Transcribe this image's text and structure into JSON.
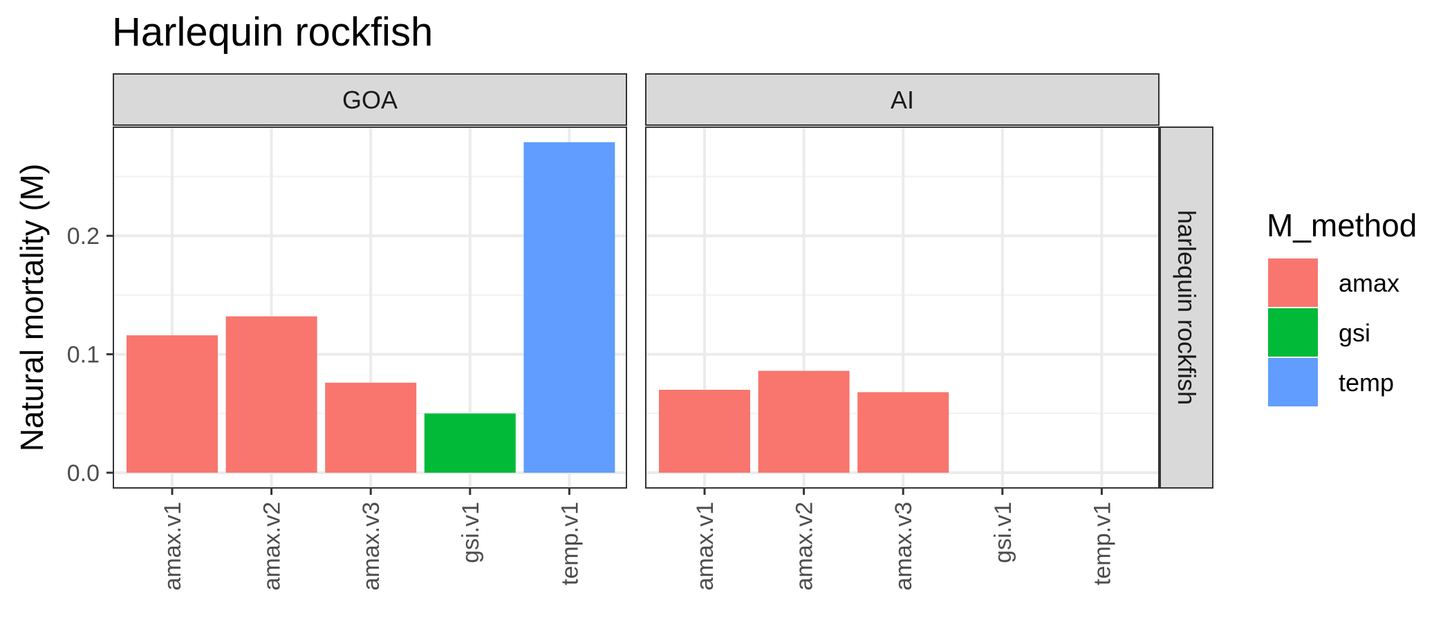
{
  "chart_data": {
    "type": "bar",
    "title": "Harlequin rockfish",
    "ylabel": "Natural mortality (M)",
    "xlabel": "",
    "ylim": [
      0,
      0.3
    ],
    "y_ticks": [
      "0.0",
      "0.1",
      "0.2"
    ],
    "categories": [
      "amax.v1",
      "amax.v2",
      "amax.v3",
      "gsi.v1",
      "temp.v1"
    ],
    "facet_row_label": "harlequin rockfish",
    "grid": true,
    "legend": {
      "title": "M_method",
      "position": "right",
      "entries": [
        {
          "name": "amax",
          "color": "#F8766D"
        },
        {
          "name": "gsi",
          "color": "#00BA38"
        },
        {
          "name": "temp",
          "color": "#619CFF"
        }
      ]
    },
    "panels": [
      {
        "name": "GOA",
        "values": [
          0.116,
          0.132,
          0.076,
          0.05,
          0.279
        ],
        "methods": [
          "amax",
          "amax",
          "amax",
          "gsi",
          "temp"
        ]
      },
      {
        "name": "AI",
        "values": [
          0.07,
          0.086,
          0.068,
          null,
          null
        ],
        "methods": [
          "amax",
          "amax",
          "amax",
          "gsi",
          "temp"
        ]
      }
    ]
  }
}
